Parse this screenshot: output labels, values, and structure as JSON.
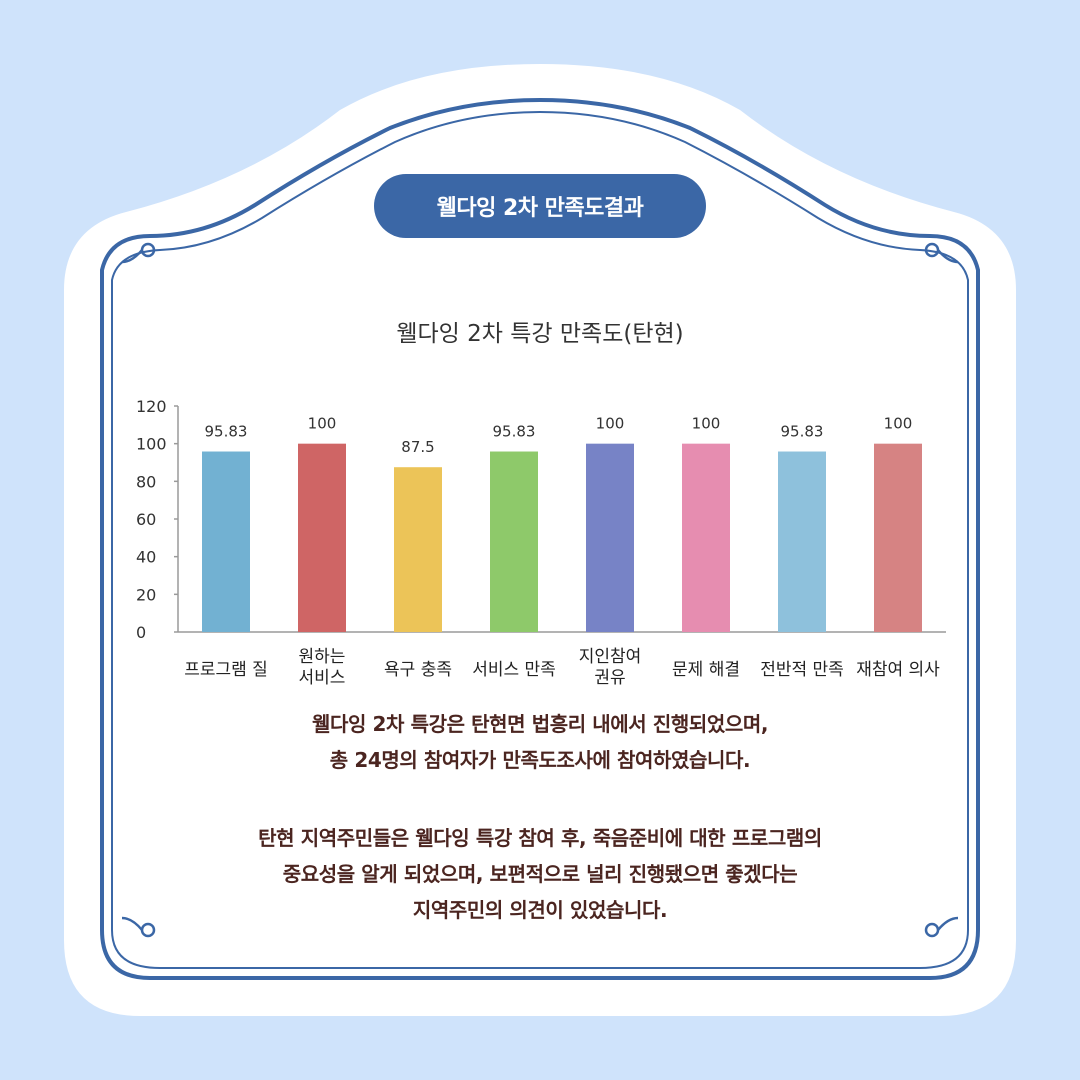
{
  "header": {
    "title": "웰다잉 2차 만족도결과"
  },
  "colors": {
    "page_bg": "#cfe3fb",
    "card_bg": "#ffffff",
    "frame_border": "#3b67a6",
    "pill_bg": "#3b67a6",
    "text_dark": "#4b2520"
  },
  "chart_data": {
    "type": "bar",
    "title": "웰다잉 2차 특강 만족도(탄현)",
    "categories": [
      [
        "프로그램 질"
      ],
      [
        "원하는",
        "서비스"
      ],
      [
        "욕구 충족"
      ],
      [
        "서비스 만족"
      ],
      [
        "지인참여",
        "권유"
      ],
      [
        "문제 해결"
      ],
      [
        "전반적 만족"
      ],
      [
        "재참여 의사"
      ]
    ],
    "values": [
      95.83,
      100,
      87.5,
      95.83,
      100,
      100,
      95.83,
      100
    ],
    "value_labels": [
      "95.83",
      "100",
      "87.5",
      "95.83",
      "100",
      "100",
      "95.83",
      "100"
    ],
    "bar_colors": [
      "#72b1d2",
      "#cf6565",
      "#ecc458",
      "#8ec96a",
      "#7783c6",
      "#e68db0",
      "#8ec1dc",
      "#d68383"
    ],
    "ylim": [
      0,
      120
    ],
    "yticks": [
      0,
      20,
      40,
      60,
      80,
      100,
      120
    ],
    "xlabel": "",
    "ylabel": "",
    "grid": false,
    "legend": "none"
  },
  "description": {
    "para1": [
      "웰다잉 2차 특강은 탄현면 법흥리 내에서 진행되었으며,",
      "총 24명의 참여자가 만족도조사에 참여하였습니다."
    ],
    "para2": [
      "탄현 지역주민들은 웰다잉 특강 참여 후, 죽음준비에 대한 프로그램의",
      "중요성을 알게 되었으며, 보편적으로 널리 진행됐으면 좋겠다는",
      "지역주민의 의견이 있었습니다."
    ]
  }
}
